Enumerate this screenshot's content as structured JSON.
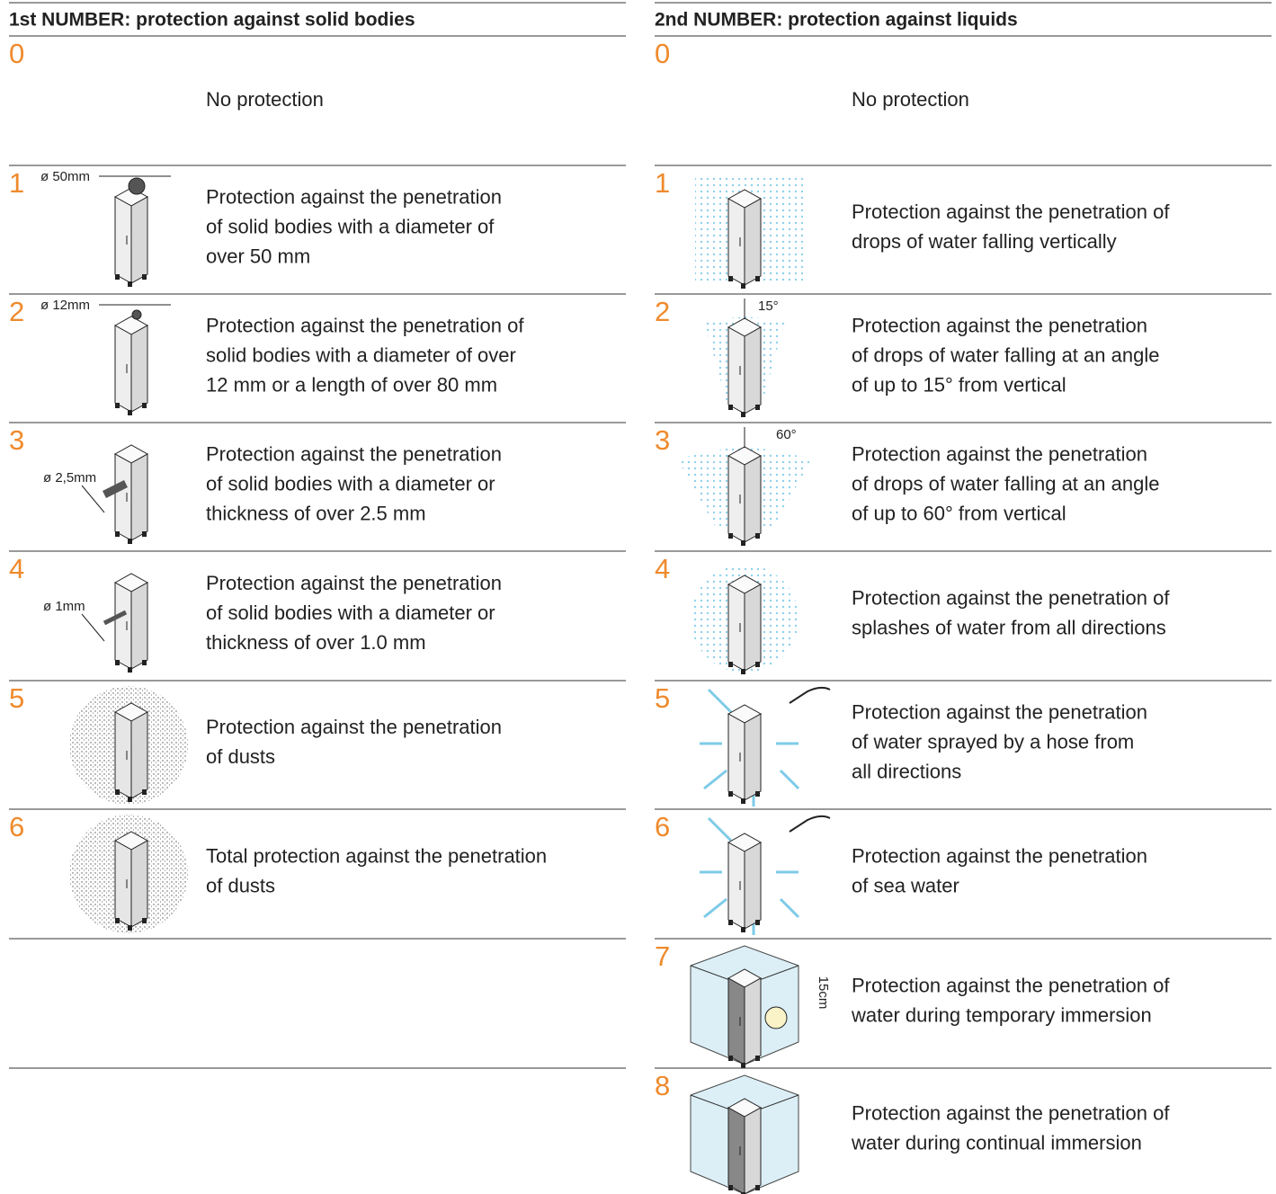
{
  "columns": [
    {
      "title": "1st NUMBER: protection against solid bodies",
      "rows": [
        {
          "number": "0",
          "description": [
            "No protection"
          ]
        },
        {
          "number": "1",
          "description": [
            "Protection against the penetration",
            "of solid bodies with a diameter of",
            "over 50 mm"
          ],
          "label": "ø 50mm"
        },
        {
          "number": "2",
          "description": [
            "Protection against the penetration of",
            "solid bodies with a diameter of over",
            "12 mm or a length of over 80 mm"
          ],
          "label": "ø 12mm"
        },
        {
          "number": "3",
          "description": [
            "Protection against the penetration",
            "of solid bodies with a diameter or",
            "thickness of over 2.5 mm"
          ],
          "label": "ø 2,5mm"
        },
        {
          "number": "4",
          "description": [
            "Protection against the penetration",
            "of solid bodies with a diameter or",
            "thickness of over 1.0 mm"
          ],
          "label": "ø 1mm"
        },
        {
          "number": "5",
          "description": [
            "Protection against the penetration",
            "of dusts"
          ]
        },
        {
          "number": "6",
          "description": [
            "Total protection against the penetration",
            "of dusts"
          ]
        }
      ]
    },
    {
      "title": "2nd NUMBER: protection against liquids",
      "rows": [
        {
          "number": "0",
          "description": [
            "No protection"
          ]
        },
        {
          "number": "1",
          "description": [
            "Protection against the penetration of",
            "drops of water falling vertically"
          ]
        },
        {
          "number": "2",
          "description": [
            "Protection against the penetration",
            "of drops of water falling at an angle",
            "of up to 15° from vertical"
          ],
          "label": "15°"
        },
        {
          "number": "3",
          "description": [
            "Protection against the penetration",
            "of drops of water falling at an angle",
            "of up to 60° from vertical"
          ],
          "label": "60°"
        },
        {
          "number": "4",
          "description": [
            "Protection against the penetration of",
            "splashes of water from all directions"
          ]
        },
        {
          "number": "5",
          "description": [
            "Protection against the penetration",
            "of water sprayed by a hose from",
            "all directions"
          ]
        },
        {
          "number": "6",
          "description": [
            "Protection against the penetration",
            "of sea water"
          ]
        },
        {
          "number": "7",
          "description": [
            "Protection against the penetration of",
            "water during temporary immersion"
          ],
          "label": "15cm"
        },
        {
          "number": "8",
          "description": [
            "Protection against the penetration of",
            "water during continual immersion"
          ]
        }
      ]
    }
  ]
}
